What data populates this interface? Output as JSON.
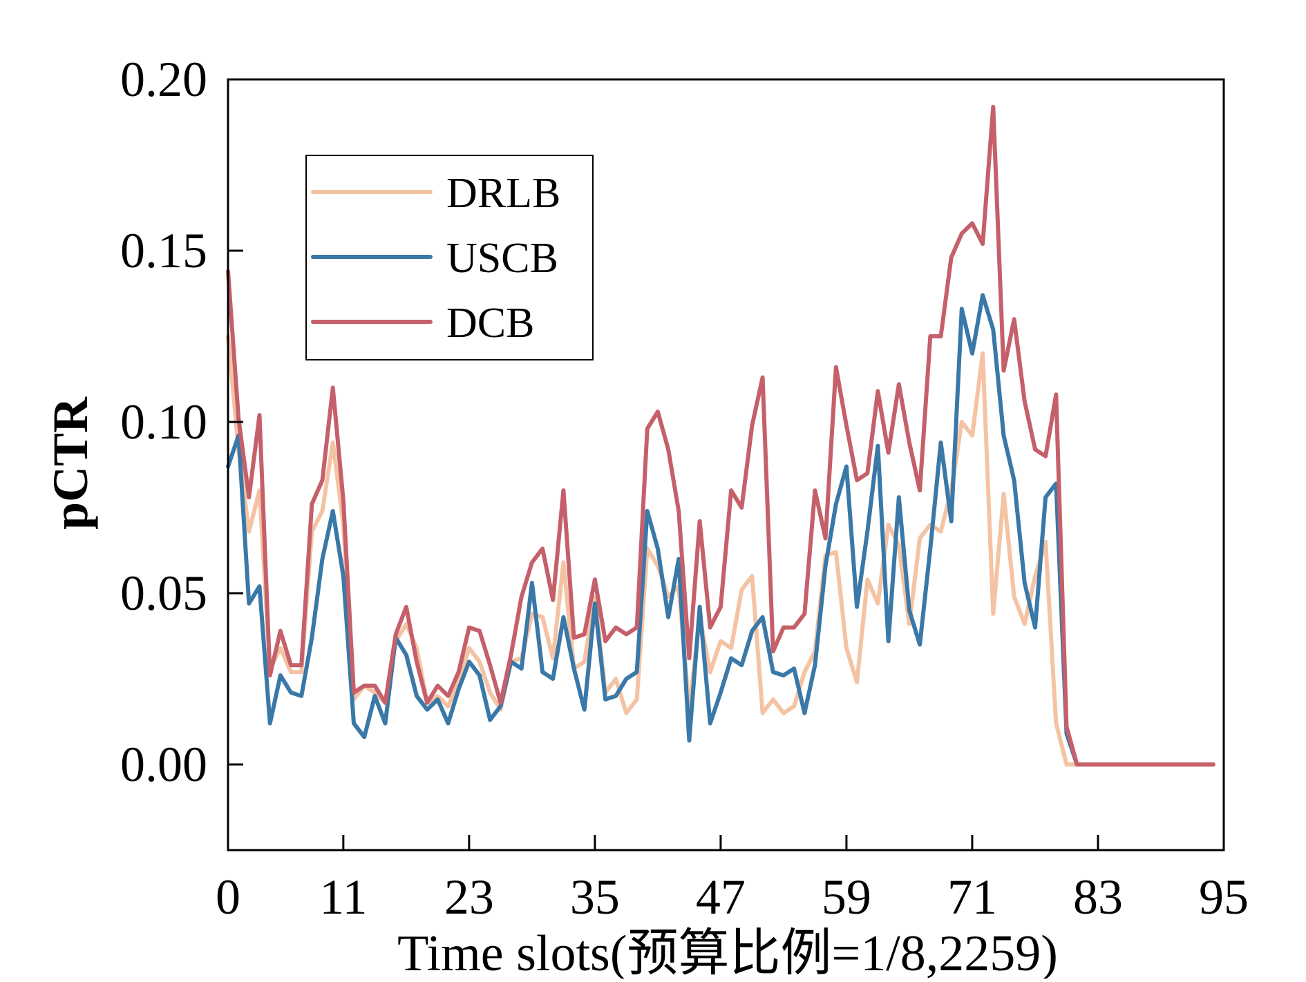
{
  "chart_data": {
    "type": "line",
    "xlabel": "Time slots(预算比例=1/8,2259)",
    "ylabel": "pCTR",
    "xlim": [
      0,
      95
    ],
    "ylim": [
      -0.025,
      0.2
    ],
    "xticks": [
      0,
      11,
      23,
      35,
      47,
      59,
      71,
      83,
      95
    ],
    "yticks": [
      0.0,
      0.05,
      0.1,
      0.15,
      0.2
    ],
    "ytick_labels": [
      "0.00",
      "0.05",
      "0.10",
      "0.15",
      "0.20"
    ],
    "grid": false,
    "legend_position": "upper-left",
    "x": [
      0,
      1,
      2,
      3,
      4,
      5,
      6,
      7,
      8,
      9,
      10,
      11,
      12,
      13,
      14,
      15,
      16,
      17,
      18,
      19,
      20,
      21,
      22,
      23,
      24,
      25,
      26,
      27,
      28,
      29,
      30,
      31,
      32,
      33,
      34,
      35,
      36,
      37,
      38,
      39,
      40,
      41,
      42,
      43,
      44,
      45,
      46,
      47,
      48,
      49,
      50,
      51,
      52,
      53,
      54,
      55,
      56,
      57,
      58,
      59,
      60,
      61,
      62,
      63,
      64,
      65,
      66,
      67,
      68,
      69,
      70,
      71,
      72,
      73,
      74,
      75,
      76,
      77,
      78,
      79,
      80,
      81,
      82,
      83,
      84,
      85,
      86,
      87,
      88,
      89,
      90,
      91,
      92,
      93,
      94
    ],
    "series": [
      {
        "name": "DRLB",
        "color": "#f4c3a3",
        "values": [
          0.125,
          0.092,
          0.068,
          0.08,
          0.028,
          0.034,
          0.027,
          0.027,
          0.068,
          0.074,
          0.094,
          0.07,
          0.019,
          0.023,
          0.021,
          0.018,
          0.036,
          0.041,
          0.034,
          0.018,
          0.02,
          0.017,
          0.024,
          0.034,
          0.03,
          0.021,
          0.016,
          0.03,
          0.031,
          0.044,
          0.043,
          0.031,
          0.059,
          0.028,
          0.03,
          0.049,
          0.021,
          0.025,
          0.015,
          0.019,
          0.063,
          0.058,
          0.049,
          0.052,
          0.016,
          0.043,
          0.027,
          0.036,
          0.034,
          0.051,
          0.055,
          0.015,
          0.019,
          0.015,
          0.017,
          0.027,
          0.033,
          0.061,
          0.062,
          0.034,
          0.024,
          0.054,
          0.047,
          0.07,
          0.064,
          0.041,
          0.066,
          0.07,
          0.068,
          0.08,
          0.1,
          0.096,
          0.12,
          0.044,
          0.079,
          0.049,
          0.041,
          0.055,
          0.065,
          0.012,
          0,
          0,
          0,
          0,
          0,
          0,
          0,
          0,
          0,
          0,
          0,
          0,
          0,
          0,
          0
        ]
      },
      {
        "name": "USCB",
        "color": "#3a78a8",
        "values": [
          0.087,
          0.096,
          0.047,
          0.052,
          0.012,
          0.026,
          0.021,
          0.02,
          0.037,
          0.06,
          0.074,
          0.055,
          0.012,
          0.008,
          0.02,
          0.012,
          0.037,
          0.032,
          0.02,
          0.016,
          0.019,
          0.012,
          0.022,
          0.03,
          0.026,
          0.013,
          0.017,
          0.03,
          0.028,
          0.053,
          0.027,
          0.025,
          0.043,
          0.028,
          0.016,
          0.047,
          0.019,
          0.02,
          0.025,
          0.027,
          0.074,
          0.063,
          0.043,
          0.06,
          0.007,
          0.046,
          0.012,
          0.021,
          0.031,
          0.029,
          0.039,
          0.043,
          0.027,
          0.026,
          0.028,
          0.015,
          0.029,
          0.058,
          0.076,
          0.087,
          0.046,
          0.068,
          0.093,
          0.036,
          0.078,
          0.045,
          0.035,
          0.063,
          0.094,
          0.071,
          0.133,
          0.12,
          0.137,
          0.127,
          0.096,
          0.083,
          0.053,
          0.04,
          0.078,
          0.082,
          0.009,
          0,
          0,
          0,
          0,
          0,
          0,
          0,
          0,
          0,
          0,
          0,
          0,
          0,
          0
        ]
      },
      {
        "name": "DCB",
        "color": "#c5606b",
        "values": [
          0.144,
          0.101,
          0.078,
          0.102,
          0.026,
          0.039,
          0.029,
          0.029,
          0.076,
          0.083,
          0.11,
          0.077,
          0.021,
          0.023,
          0.023,
          0.018,
          0.038,
          0.046,
          0.03,
          0.018,
          0.023,
          0.02,
          0.027,
          0.04,
          0.039,
          0.029,
          0.018,
          0.032,
          0.049,
          0.059,
          0.063,
          0.048,
          0.08,
          0.037,
          0.038,
          0.054,
          0.036,
          0.04,
          0.038,
          0.04,
          0.098,
          0.103,
          0.092,
          0.074,
          0.031,
          0.071,
          0.04,
          0.046,
          0.08,
          0.075,
          0.099,
          0.113,
          0.033,
          0.04,
          0.04,
          0.044,
          0.08,
          0.066,
          0.116,
          0.099,
          0.083,
          0.085,
          0.109,
          0.091,
          0.111,
          0.094,
          0.08,
          0.125,
          0.125,
          0.148,
          0.155,
          0.158,
          0.152,
          0.192,
          0.115,
          0.13,
          0.106,
          0.092,
          0.09,
          0.108,
          0.011,
          0,
          0,
          0,
          0,
          0,
          0,
          0,
          0,
          0,
          0,
          0,
          0,
          0,
          0
        ]
      }
    ]
  }
}
